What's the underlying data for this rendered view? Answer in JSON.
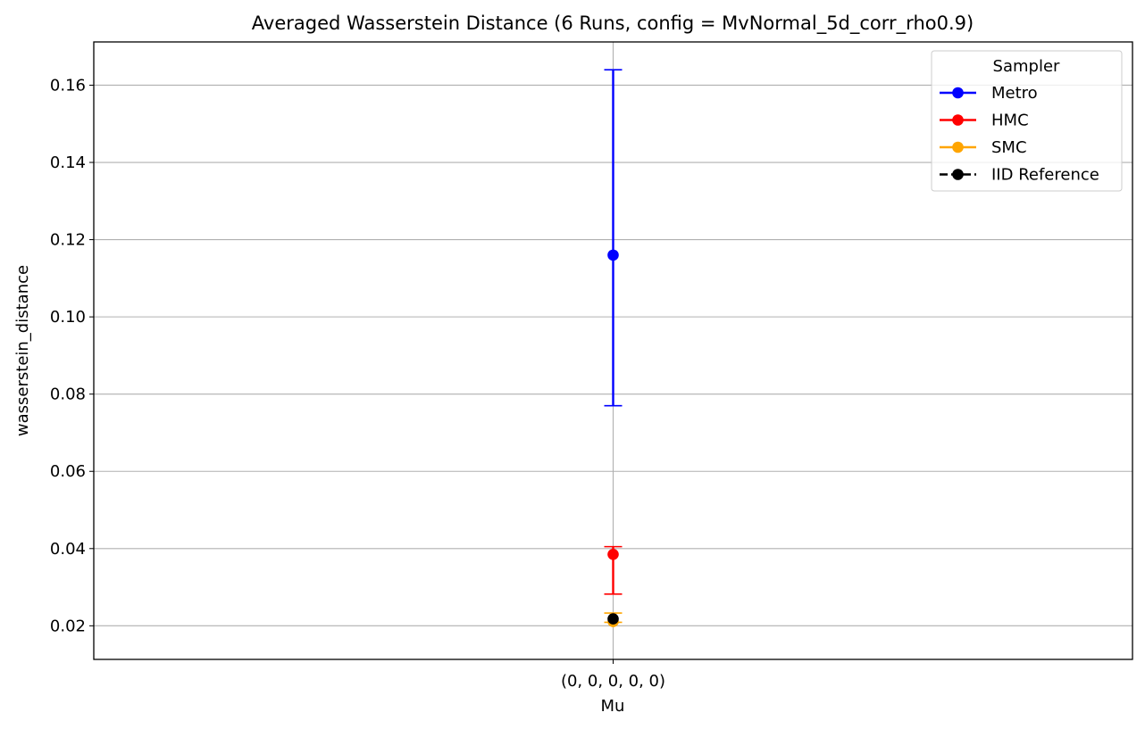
{
  "chart_data": {
    "type": "scatter",
    "title": "Averaged Wasserstein Distance (6 Runs, config = MvNormal_5d_corr_rho0.9)",
    "xlabel": "Mu",
    "ylabel": "wasserstein_distance",
    "categories": [
      "(0, 0, 0, 0, 0)"
    ],
    "ylim": [
      0.0113,
      0.1712
    ],
    "yticks": [
      "0.02",
      "0.04",
      "0.06",
      "0.08",
      "0.10",
      "0.12",
      "0.14",
      "0.16"
    ],
    "grid": true,
    "legend": {
      "title": "Sampler",
      "placement": "top-right",
      "entries": [
        "Metro",
        "HMC",
        "SMC",
        "IID Reference"
      ]
    },
    "series": [
      {
        "name": "Metro",
        "color": "#0000ff",
        "values": [
          0.116
        ],
        "err_low": [
          0.077
        ],
        "err_high": [
          0.164
        ],
        "linestyle": "solid"
      },
      {
        "name": "HMC",
        "color": "#ff0000",
        "values": [
          0.0385
        ],
        "err_low": [
          0.0282
        ],
        "err_high": [
          0.0405
        ],
        "linestyle": "solid"
      },
      {
        "name": "SMC",
        "color": "#ffa500",
        "values": [
          0.0211
        ],
        "err_low": [
          0.0209
        ],
        "err_high": [
          0.0233
        ],
        "linestyle": "solid"
      },
      {
        "name": "IID Reference",
        "color": "#000000",
        "values": [
          0.0218
        ],
        "err_low": null,
        "err_high": null,
        "linestyle": "dashed"
      }
    ]
  }
}
